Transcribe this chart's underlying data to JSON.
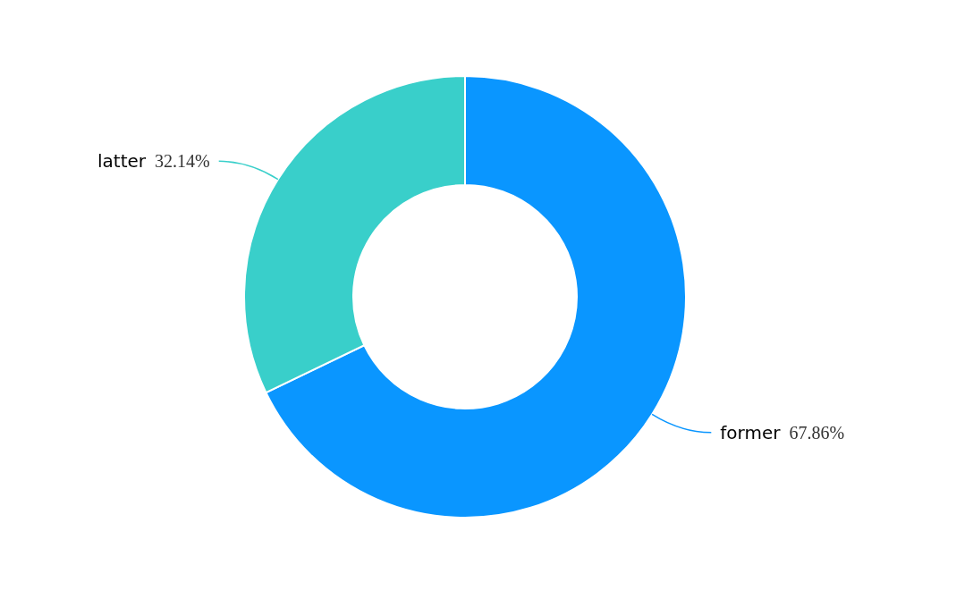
{
  "chart_data": {
    "type": "donut",
    "categories": [
      "former",
      "latter"
    ],
    "values": [
      67.86,
      32.14
    ],
    "colors": [
      "#0a96ff",
      "#39cfca"
    ],
    "value_labels": [
      "67.86%",
      "32.14%"
    ]
  }
}
